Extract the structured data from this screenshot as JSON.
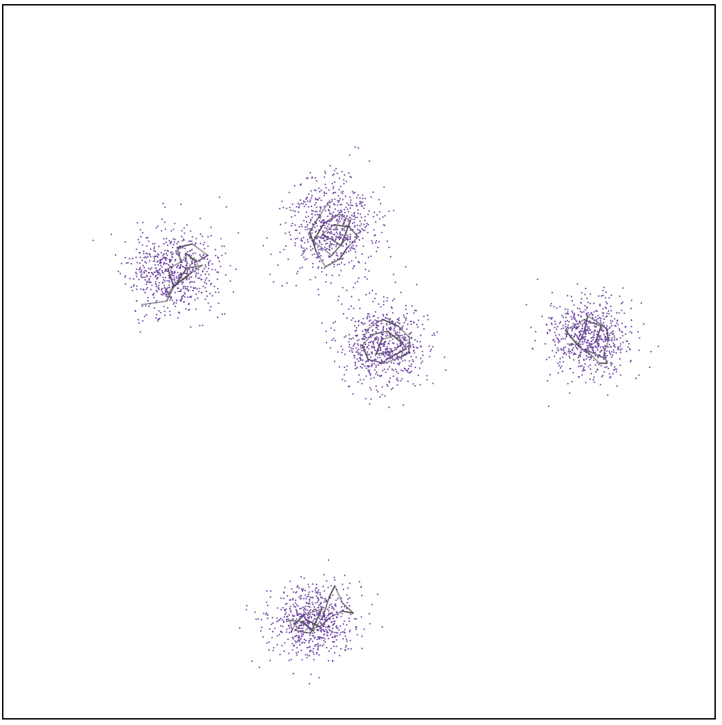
{
  "chart_data": {
    "type": "scatter",
    "title": "",
    "xlabel": "",
    "ylabel": "",
    "xlim": [
      0,
      100
    ],
    "ylim": [
      0,
      100
    ],
    "grid": false,
    "legend": "none",
    "axes_ticks": false,
    "point_color": "#6a3fa0",
    "edge_color": "#4a4a4a",
    "frame_color": "#000000",
    "background": "#ffffff",
    "clusters": [
      {
        "name": "",
        "center": [
          23.8,
          62.7
        ],
        "spread": [
          3.2,
          3.0
        ],
        "points": 650,
        "seed": 11,
        "trajectory": [
          [
            19.5,
            58.0
          ],
          [
            23.0,
            58.5
          ],
          [
            24.0,
            60.5
          ],
          [
            23.2,
            63.0
          ],
          [
            25.0,
            64.0
          ],
          [
            24.5,
            66.0
          ],
          [
            26.6,
            66.5
          ],
          [
            28.8,
            64.9
          ],
          [
            27.2,
            64.0
          ],
          [
            25.7,
            65.2
          ],
          [
            26.0,
            62.0
          ],
          [
            23.8,
            60.5
          ],
          [
            26.5,
            62.5
          ],
          [
            28.0,
            63.5
          ],
          [
            25.8,
            63.1
          ],
          [
            24.6,
            61.3
          ],
          [
            22.9,
            59.2
          ]
        ]
      },
      {
        "name": "",
        "center": [
          46.0,
          68.8
        ],
        "spread": [
          3.1,
          3.4
        ],
        "points": 650,
        "seed": 23,
        "trajectory": [
          [
            45.9,
            72.6
          ],
          [
            44.5,
            70.5
          ],
          [
            43.1,
            68.2
          ],
          [
            44.0,
            65.4
          ],
          [
            45.3,
            63.3
          ],
          [
            47.3,
            64.4
          ],
          [
            48.3,
            65.9
          ],
          [
            49.9,
            67.5
          ],
          [
            48.6,
            68.9
          ],
          [
            46.5,
            69.2
          ],
          [
            44.9,
            67.9
          ],
          [
            47.5,
            66.3
          ],
          [
            48.8,
            69.8
          ],
          [
            47.2,
            70.7
          ],
          [
            45.1,
            69.4
          ],
          [
            43.6,
            66.9
          ],
          [
            46.2,
            64.9
          ],
          [
            48.5,
            67.6
          ]
        ]
      },
      {
        "name": "",
        "center": [
          53.5,
          52.4
        ],
        "spread": [
          3.0,
          3.0
        ],
        "points": 650,
        "seed": 37,
        "trajectory": [
          [
            51.0,
            54.4
          ],
          [
            52.5,
            55.5
          ],
          [
            53.4,
            55.9
          ],
          [
            55.5,
            55.0
          ],
          [
            57.1,
            53.4
          ],
          [
            57.0,
            51.3
          ],
          [
            55.8,
            50.6
          ],
          [
            53.5,
            49.8
          ],
          [
            51.3,
            50.3
          ],
          [
            50.5,
            52.3
          ],
          [
            51.8,
            53.8
          ],
          [
            54.0,
            54.3
          ],
          [
            56.1,
            52.6
          ],
          [
            54.7,
            51.4
          ],
          [
            52.4,
            51.1
          ],
          [
            53.2,
            53.1
          ],
          [
            55.4,
            53.8
          ],
          [
            56.6,
            51.8
          ],
          [
            53.8,
            50.3
          ]
        ]
      },
      {
        "name": "",
        "center": [
          82.5,
          53.5
        ],
        "spread": [
          2.9,
          2.9
        ],
        "points": 650,
        "seed": 41,
        "trajectory": [
          [
            79.2,
            52.5
          ],
          [
            80.8,
            52.4
          ],
          [
            81.6,
            54.2
          ],
          [
            82.1,
            56.4
          ],
          [
            83.4,
            55.6
          ],
          [
            84.8,
            54.6
          ],
          [
            85.0,
            53.0
          ],
          [
            84.4,
            51.2
          ],
          [
            84.8,
            49.8
          ],
          [
            83.8,
            49.8
          ],
          [
            82.4,
            51.1
          ],
          [
            80.9,
            52.1
          ],
          [
            79.0,
            54.4
          ],
          [
            81.6,
            55.9
          ],
          [
            84.0,
            55.0
          ],
          [
            83.2,
            52.8
          ],
          [
            81.8,
            51.7
          ],
          [
            84.5,
            50.5
          ]
        ]
      },
      {
        "name": "",
        "center": [
          43.5,
          13.8
        ],
        "spread": [
          3.0,
          2.6
        ],
        "points": 650,
        "seed": 53,
        "trajectory": [
          [
            40.6,
            12.5
          ],
          [
            40.3,
            13.8
          ],
          [
            42.0,
            13.6
          ],
          [
            43.6,
            12.3
          ],
          [
            45.0,
            14.4
          ],
          [
            45.8,
            17.0
          ],
          [
            46.6,
            18.6
          ],
          [
            47.7,
            16.2
          ],
          [
            49.2,
            14.8
          ],
          [
            47.6,
            15.1
          ],
          [
            45.8,
            14.1
          ],
          [
            44.5,
            12.9
          ],
          [
            42.6,
            13.9
          ],
          [
            41.0,
            12.4
          ],
          [
            43.2,
            12.0
          ],
          [
            44.8,
            15.4
          ],
          [
            42.4,
            14.6
          ],
          [
            40.9,
            13.2
          ]
        ]
      }
    ]
  }
}
